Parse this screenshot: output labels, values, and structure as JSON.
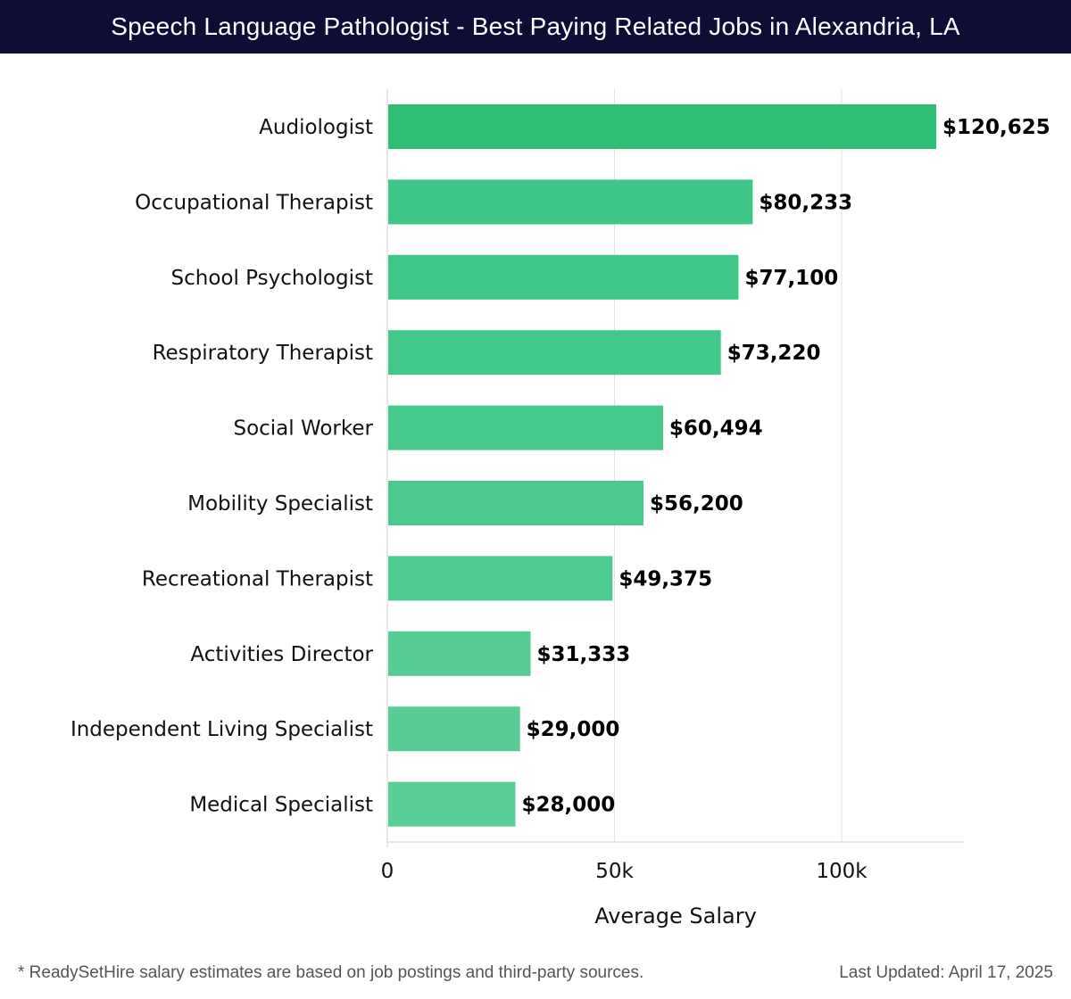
{
  "header": {
    "title": "Speech Language Pathologist - Best Paying Related Jobs in Alexandria, LA"
  },
  "chart_data": {
    "type": "bar",
    "orientation": "horizontal",
    "categories": [
      "Audiologist",
      "Occupational Therapist",
      "School Psychologist",
      "Respiratory Therapist",
      "Social Worker",
      "Mobility Specialist",
      "Recreational Therapist",
      "Activities Director",
      "Independent Living Specialist",
      "Medical Specialist"
    ],
    "values": [
      120625,
      80233,
      77100,
      73220,
      60494,
      56200,
      49375,
      31333,
      29000,
      28000
    ],
    "value_labels": [
      "$120,625",
      "$80,233",
      "$77,100",
      "$73,220",
      "$60,494",
      "$56,200",
      "$49,375",
      "$31,333",
      "$29,000",
      "$28,000"
    ],
    "bar_colors": [
      "#2ebf74",
      "#3dc688",
      "#3fc789",
      "#42c88a",
      "#48c98c",
      "#4aca8e",
      "#4ecb90",
      "#54cc94",
      "#57cd95",
      "#59ce97"
    ],
    "xlabel": "Average Salary",
    "ylabel": "",
    "xlim": [
      0,
      127000
    ],
    "xticks": [
      0,
      50000,
      100000
    ],
    "xtick_labels": [
      "0",
      "50k",
      "100k"
    ],
    "grid": true,
    "legend": "none"
  },
  "footer": {
    "note": "* ReadySetHire salary estimates are based on job postings and third-party sources.",
    "updated": "Last Updated: April 17, 2025"
  }
}
